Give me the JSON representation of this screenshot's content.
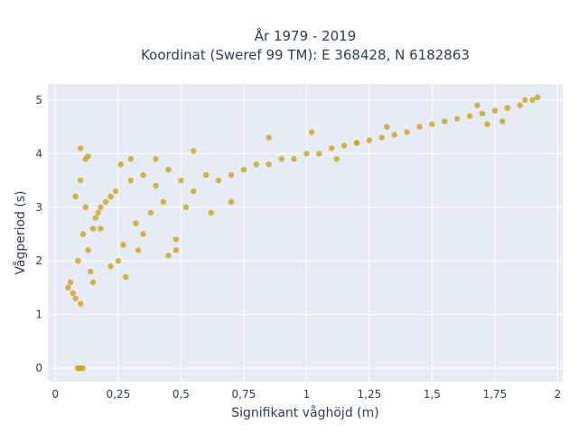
{
  "chart_data": {
    "type": "scatter",
    "title_line1": "År 1979 - 2019",
    "title_line2": "Koordinat (Sweref 99 TM): E 368428, N 6182863",
    "xlabel": "Signifikant våghöjd (m)",
    "ylabel": "Vågperiod (s)",
    "xlim": [
      -0.03,
      2.02
    ],
    "ylim": [
      -0.25,
      5.3
    ],
    "xticks": [
      0,
      0.25,
      0.5,
      0.75,
      1,
      1.25,
      1.5,
      1.75,
      2
    ],
    "xtick_labels": [
      "0",
      "0,25",
      "0,5",
      "0,75",
      "1",
      "1,25",
      "1,5",
      "1,75",
      "2"
    ],
    "yticks": [
      0,
      1,
      2,
      3,
      4,
      5
    ],
    "ytick_labels": [
      "0",
      "1",
      "2",
      "3",
      "4",
      "5"
    ],
    "grid": true,
    "colors": {
      "marker": "#d4a017",
      "plot_bg": "#e5ecf6",
      "grid": "#ffffff"
    },
    "series": [
      {
        "x": [
          0.09,
          0.1,
          0.09,
          0.11,
          0.1,
          0.05,
          0.06,
          0.08,
          0.07,
          0.1,
          0.09,
          0.12,
          0.11,
          0.13,
          0.14,
          0.12,
          0.15,
          0.16,
          0.17,
          0.18,
          0.2,
          0.22,
          0.24,
          0.25,
          0.27,
          0.3,
          0.32,
          0.35,
          0.38,
          0.4,
          0.43,
          0.45,
          0.48,
          0.5,
          0.55,
          0.6,
          0.65,
          0.7,
          0.75,
          0.8,
          0.85,
          0.9,
          0.95,
          1,
          1.05,
          1.1,
          1.15,
          1.2,
          1.25,
          1.3,
          1.35,
          1.4,
          1.45,
          1.5,
          1.55,
          1.6,
          1.65,
          1.7,
          1.75,
          1.8,
          1.85,
          1.9,
          1.92,
          1.87,
          1.78,
          1.72,
          1.68,
          0.1,
          0.13,
          0.08,
          0.4,
          0.55,
          0.7,
          0.35,
          0.28,
          0.22,
          0.18,
          0.15,
          0.3,
          0.45,
          0.62,
          0.85,
          1.02,
          1.12,
          1.2,
          1.32,
          0.26,
          0.33,
          0.48,
          0.52
        ],
        "y": [
          0,
          0,
          0,
          0,
          4.1,
          1.5,
          1.6,
          1.3,
          1.4,
          1.2,
          2.0,
          3.9,
          2.5,
          2.2,
          1.8,
          3.0,
          2.6,
          2.8,
          2.9,
          3.0,
          3.1,
          3.2,
          3.3,
          2.0,
          2.3,
          3.5,
          2.7,
          3.6,
          2.9,
          3.4,
          3.1,
          3.7,
          2.2,
          3.5,
          3.3,
          3.6,
          3.5,
          3.6,
          3.7,
          3.8,
          3.8,
          3.9,
          3.9,
          4.0,
          4.0,
          4.1,
          4.15,
          4.2,
          4.25,
          4.3,
          4.35,
          4.4,
          4.5,
          4.55,
          4.6,
          4.65,
          4.7,
          4.75,
          4.8,
          4.85,
          4.9,
          5.0,
          5.05,
          5.0,
          4.6,
          4.55,
          4.9,
          3.5,
          3.95,
          3.2,
          3.9,
          4.05,
          3.1,
          2.5,
          1.7,
          1.9,
          2.6,
          1.6,
          3.9,
          2.1,
          2.9,
          4.3,
          4.4,
          3.9,
          4.2,
          4.5,
          3.8,
          2.2,
          2.4,
          3.0
        ]
      }
    ]
  }
}
